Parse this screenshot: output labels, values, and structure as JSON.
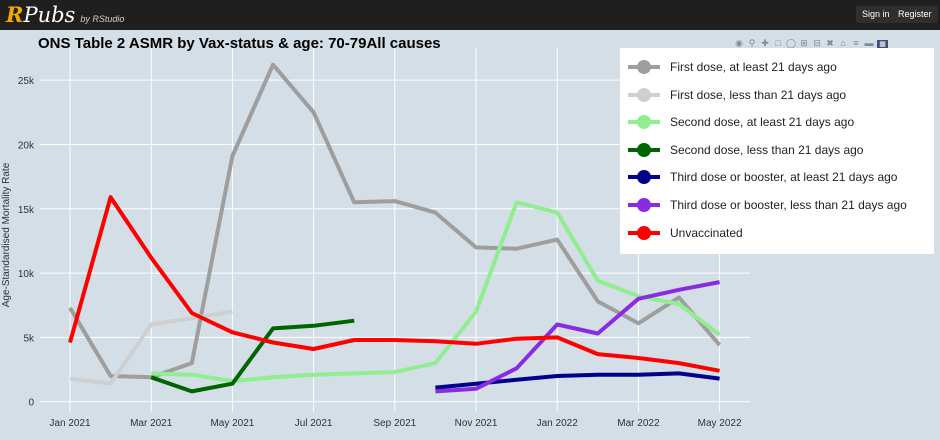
{
  "header": {
    "brand_r": "R",
    "brand_rest": "Pubs",
    "brand_by": "by RStudio",
    "signin": "Sign in",
    "register": "Register"
  },
  "colors": {
    "first_21plus": "#9e9e9e",
    "first_lt21": "#cfcfcf",
    "second_21plus": "#90ee90",
    "second_lt21": "#006400",
    "third_21plus": "#00008b",
    "third_lt21": "#8a2be2",
    "unvacc": "#ff0000"
  },
  "chart_data": {
    "type": "line",
    "title": "ONS Table 2 ASMR by Vax-status & age: 70-79All causes",
    "xlabel": "",
    "ylabel": "Age-Standardised Mortality Rate",
    "ylim": [
      -800,
      27500
    ],
    "x_ticks": [
      "Jan 2021",
      "Mar 2021",
      "May 2021",
      "Jul 2021",
      "Sep 2021",
      "Nov 2021",
      "Jan 2022",
      "Mar 2022",
      "May 2022"
    ],
    "y_ticks": [
      "0",
      "5k",
      "10k",
      "15k",
      "20k",
      "25k"
    ],
    "y_tick_values": [
      0,
      5000,
      10000,
      15000,
      20000,
      25000
    ],
    "grid": true,
    "legend_position": "top-right",
    "series": [
      {
        "name": "First dose, at least 21 days ago",
        "color_key": "first_21plus",
        "x": [
          "2021-01",
          "2021-02",
          "2021-03",
          "2021-04",
          "2021-05",
          "2021-06",
          "2021-07",
          "2021-08",
          "2021-09",
          "2021-10",
          "2021-11",
          "2021-12",
          "2022-01",
          "2022-02",
          "2022-03",
          "2022-04",
          "2022-05"
        ],
        "y": [
          7300,
          2000,
          1900,
          3000,
          19100,
          26200,
          22500,
          15500,
          15600,
          14700,
          12000,
          11900,
          12600,
          7800,
          6100,
          8100,
          4400
        ]
      },
      {
        "name": "First dose, less than 21 days ago",
        "color_key": "first_lt21",
        "x": [
          "2021-01",
          "2021-02",
          "2021-03",
          "2021-04",
          "2021-05"
        ],
        "y": [
          1800,
          1400,
          6000,
          6500,
          7000
        ]
      },
      {
        "name": "Second dose, at least 21 days ago",
        "color_key": "second_21plus",
        "x": [
          "2021-03",
          "2021-04",
          "2021-05",
          "2021-06",
          "2021-07",
          "2021-08",
          "2021-09",
          "2021-10",
          "2021-11",
          "2021-12",
          "2022-01",
          "2022-02",
          "2022-03",
          "2022-04",
          "2022-05"
        ],
        "y": [
          2200,
          2100,
          1600,
          1900,
          2100,
          2200,
          2300,
          3000,
          7000,
          15500,
          14700,
          9400,
          8200,
          7600,
          5200
        ]
      },
      {
        "name": "Second dose, less than 21 days ago",
        "color_key": "second_lt21",
        "x": [
          "2021-03",
          "2021-04",
          "2021-05",
          "2021-06",
          "2021-07",
          "2021-08"
        ],
        "y": [
          1900,
          800,
          1400,
          5700,
          5900,
          6300
        ]
      },
      {
        "name": "Third dose or booster, at least 21 days ago",
        "color_key": "third_21plus",
        "x": [
          "2021-10",
          "2021-11",
          "2021-12",
          "2022-01",
          "2022-02",
          "2022-03",
          "2022-04",
          "2022-05"
        ],
        "y": [
          1100,
          1400,
          1700,
          2000,
          2100,
          2100,
          2200,
          1800
        ]
      },
      {
        "name": "Third dose or booster, less than 21 days ago",
        "color_key": "third_lt21",
        "x": [
          "2021-10",
          "2021-11",
          "2021-12",
          "2022-01",
          "2022-02",
          "2022-03",
          "2022-04",
          "2022-05"
        ],
        "y": [
          800,
          1000,
          2600,
          6000,
          5300,
          8000,
          8700,
          9300
        ]
      },
      {
        "name": "Unvaccinated",
        "color_key": "unvacc",
        "x": [
          "2021-01",
          "2021-02",
          "2021-03",
          "2021-04",
          "2021-05",
          "2021-06",
          "2021-07",
          "2021-08",
          "2021-09",
          "2021-10",
          "2021-11",
          "2021-12",
          "2022-01",
          "2022-02",
          "2022-03",
          "2022-04",
          "2022-05"
        ],
        "y": [
          4600,
          15900,
          11200,
          6900,
          5400,
          4600,
          4100,
          4800,
          4800,
          4700,
          4500,
          4900,
          5000,
          3700,
          3400,
          3000,
          2400
        ]
      }
    ]
  }
}
